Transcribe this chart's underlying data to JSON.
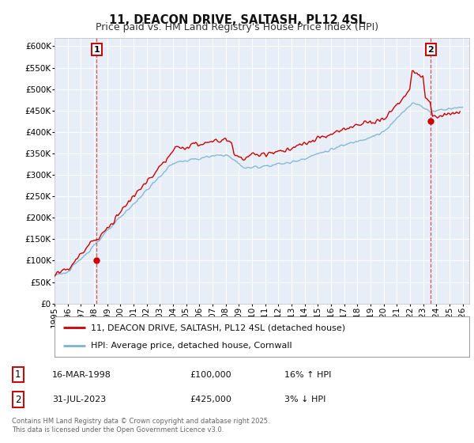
{
  "title": "11, DEACON DRIVE, SALTASH, PL12 4SL",
  "subtitle": "Price paid vs. HM Land Registry's House Price Index (HPI)",
  "xlim_start": 1995.0,
  "xlim_end": 2026.5,
  "ylim_min": 0,
  "ylim_max": 620000,
  "yticks": [
    0,
    50000,
    100000,
    150000,
    200000,
    250000,
    300000,
    350000,
    400000,
    450000,
    500000,
    550000,
    600000
  ],
  "ytick_labels": [
    "£0",
    "£50K",
    "£100K",
    "£150K",
    "£200K",
    "£250K",
    "£300K",
    "£350K",
    "£400K",
    "£450K",
    "£500K",
    "£550K",
    "£600K"
  ],
  "background_color": "#ffffff",
  "plot_bg_color": "#e8eef8",
  "grid_color": "#ffffff",
  "hpi_line_color": "#7ab4d0",
  "price_line_color": "#cc0000",
  "sale1_x": 1998.21,
  "sale1_y": 100000,
  "sale2_x": 2023.58,
  "sale2_y": 425000,
  "legend_line1": "11, DEACON DRIVE, SALTASH, PL12 4SL (detached house)",
  "legend_line2": "HPI: Average price, detached house, Cornwall",
  "annotation1_date": "16-MAR-1998",
  "annotation1_price": "£100,000",
  "annotation1_hpi": "16% ↑ HPI",
  "annotation2_date": "31-JUL-2023",
  "annotation2_price": "£425,000",
  "annotation2_hpi": "3% ↓ HPI",
  "footer": "Contains HM Land Registry data © Crown copyright and database right 2025.\nThis data is licensed under the Open Government Licence v3.0.",
  "title_fontsize": 10.5,
  "subtitle_fontsize": 9,
  "tick_fontsize": 7.5,
  "legend_fontsize": 8,
  "ann_fontsize": 8,
  "footer_fontsize": 6
}
